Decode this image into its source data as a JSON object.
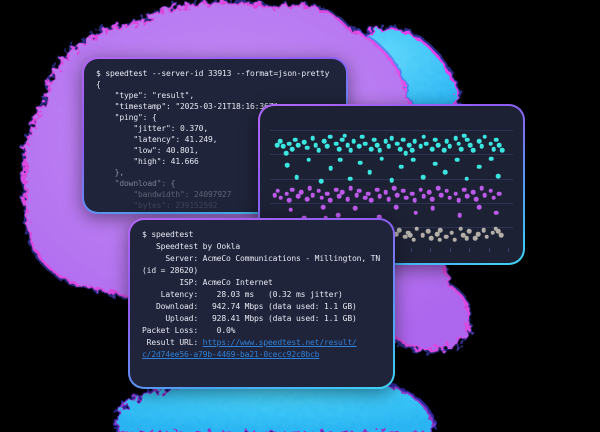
{
  "page": {
    "background": "#000000"
  },
  "clouds": {
    "purple": {
      "fill": "#b97ef2",
      "fill_light": "#c792f5",
      "fringe_magenta": "#f04ae8",
      "fringe_blue": "#4b50ec"
    },
    "cyan_top": {
      "fill": "#35c4f6",
      "fill_light": "#5fd8fb",
      "fringe_magenta": "#ee3ff2",
      "fringe_blue": "#4a50f0"
    },
    "cyan_bottom": {
      "fill": "#34c6f7",
      "fill_light": "#49d4fb",
      "fringe_magenta": "#e44df0",
      "fringe_blue": "#4038e2"
    }
  },
  "terminal_json": {
    "lines": [
      {
        "t": "$ speedtest --server-id 33913 --format=json-pretty",
        "o": 1
      },
      {
        "t": "{",
        "o": 1
      },
      {
        "t": "    \"type\": \"result\",",
        "o": 1
      },
      {
        "t": "    \"timestamp\": \"2025-03-21T18:16:36Z\",",
        "o": 1
      },
      {
        "t": "    \"ping\": {",
        "o": 1
      },
      {
        "t": "        \"jitter\": 0.370,",
        "o": 1
      },
      {
        "t": "        \"latency\": 41.249,",
        "o": 1
      },
      {
        "t": "        \"low\": 40.801,",
        "o": 1
      },
      {
        "t": "        \"high\": 41.666",
        "o": 1
      },
      {
        "t": "    },",
        "o": 0.55
      },
      {
        "t": "    \"download\": {",
        "o": 0.45
      },
      {
        "t": "        \"bandwidth\": 24097927",
        "o": 0.3
      },
      {
        "t": "        \"bytes\": 239152592",
        "o": 0.15
      }
    ]
  },
  "terminal_speedtest": {
    "link_color": "#2f80d8",
    "lines": [
      {
        "t": "$ speedtest",
        "link": ""
      },
      {
        "t": "",
        "link": ""
      },
      {
        "t": "   Speedtest by Ookla",
        "link": ""
      },
      {
        "t": "",
        "link": ""
      },
      {
        "t": "     Server: AcmeCo Communications - Millington, TN",
        "link": ""
      },
      {
        "t": "(id = 28620)",
        "link": ""
      },
      {
        "t": "        ISP: AcmeCo Internet",
        "link": ""
      },
      {
        "t": "    Latency:    28.03 ms   (0.32 ms jitter)",
        "link": ""
      },
      {
        "t": "   Download:   942.74 Mbps (data used: 1.1 GB)",
        "link": ""
      },
      {
        "t": "     Upload:   928.41 Mbps (data used: 1.1 GB)",
        "link": ""
      },
      {
        "t": "Packet Loss:    0.0%",
        "link": ""
      },
      {
        "t": " Result URL: ",
        "link": "https://www.speedtest.net/result/"
      },
      {
        "t": "",
        "link": "c/2d74ee56-a79b-4469-ba21-0cecc92c8bcb"
      }
    ]
  },
  "chart_data": {
    "type": "scatter",
    "title": "",
    "xlabel": "",
    "ylabel": "",
    "legend": "none",
    "grid": "horizontal",
    "gridlines_y_pct": [
      9,
      27,
      45,
      63,
      81
    ],
    "xticks_pct": [
      2,
      10,
      18,
      26,
      34,
      42,
      50,
      58,
      66,
      74,
      82,
      90,
      98
    ],
    "series": [
      {
        "name": "band-1-cyan",
        "color": "#3be6e0",
        "points": [
          [
            3,
            20
          ],
          [
            4.2,
            17
          ],
          [
            5.4,
            21
          ],
          [
            6.6,
            26
          ],
          [
            8,
            19
          ],
          [
            9.2,
            23
          ],
          [
            10.4,
            16
          ],
          [
            11.6,
            20
          ],
          [
            14,
            18
          ],
          [
            15.2,
            22
          ],
          [
            17.6,
            15
          ],
          [
            18.8,
            20
          ],
          [
            20,
            24
          ],
          [
            22.4,
            17
          ],
          [
            23.6,
            21
          ],
          [
            24.8,
            14
          ],
          [
            27.2,
            19
          ],
          [
            28.4,
            23
          ],
          [
            29.6,
            16
          ],
          [
            30.8,
            13
          ],
          [
            32,
            20
          ],
          [
            33.2,
            24
          ],
          [
            34.4,
            17
          ],
          [
            36.8,
            21
          ],
          [
            38,
            14
          ],
          [
            39.2,
            19
          ],
          [
            41.6,
            23
          ],
          [
            42.8,
            16
          ],
          [
            44,
            20
          ],
          [
            45.2,
            24
          ],
          [
            47.6,
            17
          ],
          [
            48.8,
            21
          ],
          [
            50,
            15
          ],
          [
            52.4,
            19
          ],
          [
            53.6,
            23
          ],
          [
            54.8,
            16
          ],
          [
            55.9,
            26
          ],
          [
            57.2,
            20
          ],
          [
            58.4,
            24
          ],
          [
            59.6,
            17
          ],
          [
            62,
            21
          ],
          [
            63.2,
            14
          ],
          [
            64.4,
            19
          ],
          [
            66.8,
            23
          ],
          [
            68,
            16
          ],
          [
            69.2,
            20
          ],
          [
            71.6,
            24
          ],
          [
            72.8,
            17
          ],
          [
            74,
            21
          ],
          [
            76.4,
            15
          ],
          [
            77.6,
            19
          ],
          [
            78.8,
            23
          ],
          [
            80,
            13
          ],
          [
            81.2,
            16
          ],
          [
            82.4,
            20
          ],
          [
            83.6,
            24
          ],
          [
            86,
            17
          ],
          [
            87.2,
            21
          ],
          [
            88.4,
            14
          ],
          [
            90.8,
            19
          ],
          [
            92,
            23
          ],
          [
            93.2,
            16
          ],
          [
            94.4,
            20
          ],
          [
            95.6,
            24
          ],
          [
            7,
            35
          ],
          [
            11,
            44
          ],
          [
            16,
            31
          ],
          [
            21,
            47
          ],
          [
            25,
            37
          ],
          [
            29,
            31
          ],
          [
            33,
            45
          ],
          [
            37,
            33
          ],
          [
            41,
            40
          ],
          [
            46,
            30
          ],
          [
            50,
            46
          ],
          [
            54,
            36
          ],
          [
            59,
            31
          ],
          [
            63,
            44
          ],
          [
            68,
            34
          ],
          [
            72,
            40
          ],
          [
            77,
            31
          ],
          [
            81,
            45
          ],
          [
            86,
            36
          ],
          [
            91,
            30
          ],
          [
            94,
            43
          ]
        ]
      },
      {
        "name": "band-2-purple",
        "color": "#bb5ae8",
        "points": [
          [
            2,
            57
          ],
          [
            3.2,
            54
          ],
          [
            4.4,
            59
          ],
          [
            6.8,
            56
          ],
          [
            8,
            61
          ],
          [
            9.2,
            53
          ],
          [
            11.6,
            58
          ],
          [
            12.8,
            55
          ],
          [
            15.2,
            60
          ],
          [
            16.4,
            52
          ],
          [
            17.6,
            57
          ],
          [
            20,
            54
          ],
          [
            21.2,
            59
          ],
          [
            23.6,
            56
          ],
          [
            24.8,
            61
          ],
          [
            27.2,
            53
          ],
          [
            28.4,
            58
          ],
          [
            29.6,
            55
          ],
          [
            32,
            60
          ],
          [
            33.2,
            52
          ],
          [
            35.6,
            57
          ],
          [
            36.8,
            54
          ],
          [
            39.2,
            59
          ],
          [
            40.4,
            56
          ],
          [
            41.6,
            61
          ],
          [
            44,
            53
          ],
          [
            45.2,
            58
          ],
          [
            47.6,
            55
          ],
          [
            48.8,
            60
          ],
          [
            51.2,
            52
          ],
          [
            52.4,
            57
          ],
          [
            54.8,
            54
          ],
          [
            56,
            59
          ],
          [
            58.4,
            56
          ],
          [
            59.6,
            61
          ],
          [
            62,
            53
          ],
          [
            63.2,
            58
          ],
          [
            65.6,
            55
          ],
          [
            66.8,
            60
          ],
          [
            69.2,
            52
          ],
          [
            70.4,
            57
          ],
          [
            72.8,
            54
          ],
          [
            74,
            59
          ],
          [
            76.4,
            56
          ],
          [
            77.6,
            61
          ],
          [
            80,
            53
          ],
          [
            81.2,
            58
          ],
          [
            83.6,
            55
          ],
          [
            84.8,
            60
          ],
          [
            87.2,
            52
          ],
          [
            88.4,
            57
          ],
          [
            90.8,
            54
          ],
          [
            92,
            59
          ],
          [
            94.4,
            56
          ],
          [
            8.5,
            68
          ],
          [
            14,
            74
          ],
          [
            22,
            66
          ],
          [
            28,
            72
          ],
          [
            35,
            67
          ],
          [
            45,
            73
          ],
          [
            52,
            66
          ],
          [
            60,
            70
          ],
          [
            67,
            67
          ],
          [
            78,
            72
          ],
          [
            86,
            66
          ],
          [
            93,
            70
          ],
          [
            23,
            74
          ]
        ]
      },
      {
        "name": "band-3-gray",
        "color": "#b3afa8",
        "points": [
          [
            52,
            86
          ],
          [
            53.2,
            83
          ],
          [
            55.6,
            88
          ],
          [
            56.8,
            85
          ],
          [
            57.8,
            87
          ],
          [
            59.2,
            90
          ],
          [
            60.4,
            82
          ],
          [
            62.8,
            87
          ],
          [
            65.2,
            84
          ],
          [
            66.4,
            89
          ],
          [
            68.8,
            86
          ],
          [
            69.8,
            90
          ],
          [
            70,
            83
          ],
          [
            72.4,
            88
          ],
          [
            74.8,
            85
          ],
          [
            76,
            90
          ],
          [
            78.4,
            82
          ],
          [
            79.6,
            87
          ],
          [
            81,
            89
          ],
          [
            82,
            84
          ],
          [
            84.4,
            89
          ],
          [
            85.6,
            86
          ],
          [
            88,
            83
          ],
          [
            89.2,
            88
          ],
          [
            91.6,
            85
          ],
          [
            92.8,
            82
          ],
          [
            94,
            84
          ],
          [
            95.2,
            87
          ]
        ]
      }
    ]
  }
}
